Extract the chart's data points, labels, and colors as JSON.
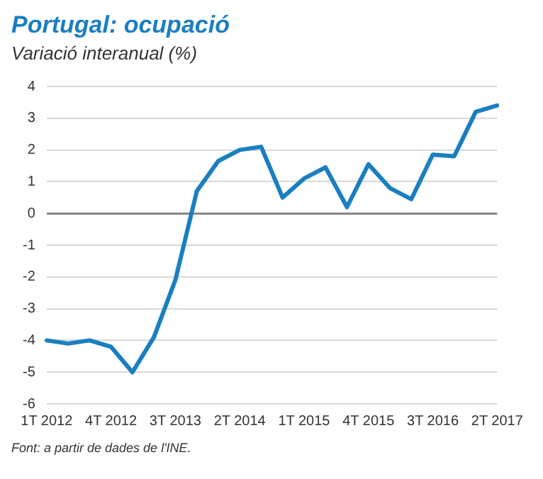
{
  "chart_data": {
    "type": "line",
    "title": "Portugal: ocupació",
    "subtitle": "Variació interanual (%)",
    "categories": [
      "1T 2012",
      null,
      null,
      "4T 2012",
      null,
      null,
      "3T 2013",
      null,
      null,
      "2T 2014",
      null,
      null,
      "1T 2015",
      null,
      null,
      "4T 2015",
      null,
      null,
      "3T 2016",
      null,
      null,
      "2T 2017"
    ],
    "series": [
      {
        "color": "#1a7fc1",
        "values": [
          -4.0,
          -4.1,
          -4.0,
          -4.2,
          -5.0,
          -3.9,
          -2.1,
          0.7,
          1.65,
          2.0,
          2.1,
          0.5,
          1.1,
          1.45,
          0.2,
          1.55,
          0.8,
          0.45,
          1.85,
          1.8,
          3.2,
          3.4
        ]
      }
    ],
    "ylim": [
      -6,
      4
    ],
    "yticks": [
      -6,
      -5,
      -4,
      -3,
      -2,
      -1,
      0,
      1,
      2,
      3,
      4
    ],
    "grid": "y",
    "legend": false,
    "marker": "none",
    "line_style": "solid",
    "annotations": [
      "Font: a partir de dades de l'INE."
    ]
  }
}
